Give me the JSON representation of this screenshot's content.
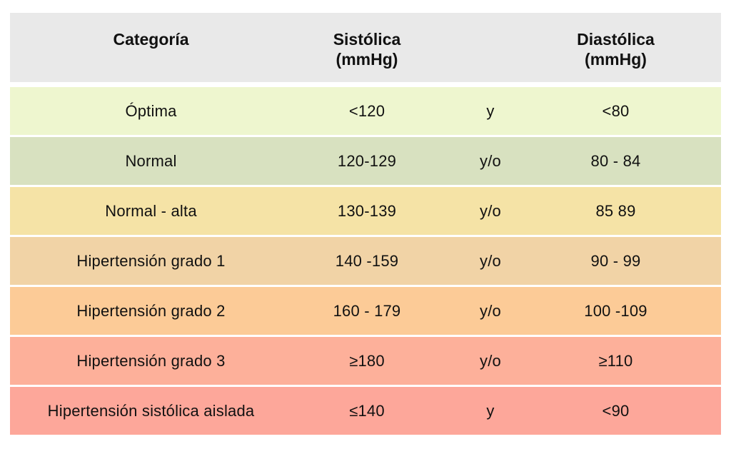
{
  "table": {
    "headers": {
      "category": "Categoría",
      "systolic_line1": "Sistólica",
      "systolic_line2": "(mmHg)",
      "diastolic_line1": "Diastólica",
      "diastolic_line2": "(mmHg)"
    },
    "header_color": "#e9e9e9",
    "rows": [
      {
        "category": "Óptima",
        "systolic": "<120",
        "conjunction": "y",
        "diastolic": "<80",
        "color": "#eef6cf"
      },
      {
        "category": "Normal",
        "systolic": "120-129",
        "conjunction": "y/o",
        "diastolic": "80 - 84",
        "color": "#d8e1c0"
      },
      {
        "category": "Normal - alta",
        "systolic": "130-139",
        "conjunction": "y/o",
        "diastolic": "85  89",
        "color": "#f5e3a6"
      },
      {
        "category": "Hipertensión grado 1",
        "systolic": "140 -159",
        "conjunction": "y/o",
        "diastolic": "90 - 99",
        "color": "#f1d3a6"
      },
      {
        "category": "Hipertensión grado 2",
        "systolic": "160 - 179",
        "conjunction": "y/o",
        "diastolic": "100 -109",
        "color": "#fccb97"
      },
      {
        "category": "Hipertensión grado 3",
        "systolic": "≥180",
        "conjunction": "y/o",
        "diastolic": "≥110",
        "color": "#fdb09a"
      },
      {
        "category": "Hipertensión sistólica aislada",
        "systolic": "≤140",
        "conjunction": "y",
        "diastolic": "<90",
        "color": "#fda79a"
      }
    ]
  }
}
